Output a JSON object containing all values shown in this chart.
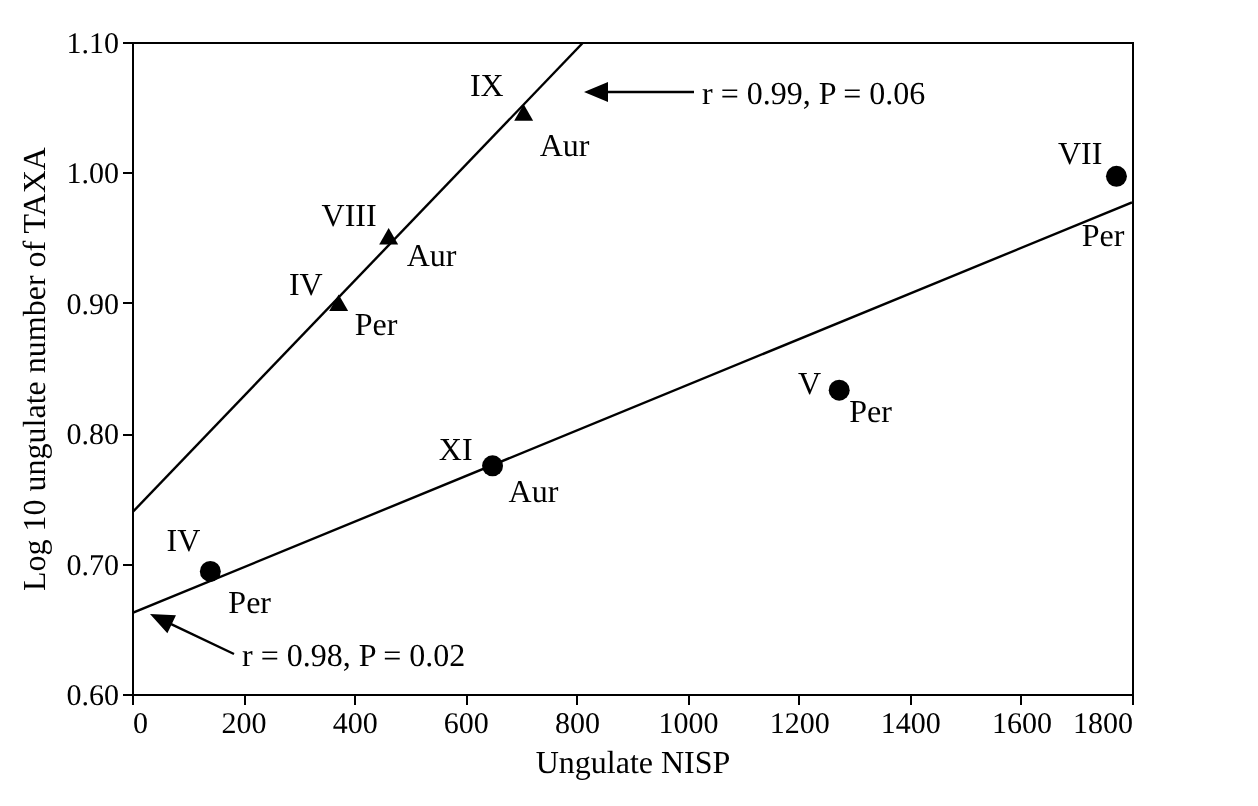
{
  "chart_data": {
    "type": "scatter",
    "xlabel": "Ungulate NISP",
    "ylabel": "Log 10 ungulate number of TAXA",
    "xlim": [
      0,
      1800
    ],
    "ylim": [
      0.6,
      1.1
    ],
    "xticks": [
      0,
      200,
      400,
      600,
      800,
      1000,
      1200,
      1400,
      1600,
      1800
    ],
    "yticks": [
      {
        "value": 0.6,
        "label": "0.60"
      },
      {
        "value": 0.7,
        "label": "0.70"
      },
      {
        "value": 0.8,
        "label": "0.80"
      },
      {
        "value": 0.9,
        "label": "0.90"
      },
      {
        "value": 1.0,
        "label": "1.00"
      },
      {
        "value": 1.1,
        "label": "1.10"
      }
    ],
    "grid": false,
    "series": [
      {
        "type": "scatter",
        "marker": "triangle",
        "color": "#000000",
        "x": [
          372,
          462,
          705
        ],
        "values": [
          0.9,
          0.951,
          1.046
        ]
      },
      {
        "type": "scatter",
        "marker": "circle",
        "color": "#000000",
        "x": [
          141,
          649,
          1273,
          1772
        ],
        "values": [
          0.694,
          0.775,
          0.833,
          0.997
        ]
      },
      {
        "type": "line",
        "marker": "none",
        "line_style": "solid",
        "color": "#000000",
        "x": [
          0,
          813
        ],
        "values": [
          0.739,
          1.1
        ]
      },
      {
        "type": "line",
        "marker": "none",
        "line_style": "solid",
        "color": "#000000",
        "x": [
          0,
          1800
        ],
        "values": [
          0.662,
          0.977
        ]
      }
    ],
    "annotations": [
      {
        "text": "IV",
        "x": 372,
        "y": 0.9
      },
      {
        "text": "Per",
        "x": 372,
        "y": 0.9
      },
      {
        "text": "VIII",
        "x": 462,
        "y": 0.951
      },
      {
        "text": "Aur",
        "x": 462,
        "y": 0.951
      },
      {
        "text": "IX",
        "x": 705,
        "y": 1.046
      },
      {
        "text": "Aur",
        "x": 705,
        "y": 1.046
      },
      {
        "text": "IV",
        "x": 141,
        "y": 0.694
      },
      {
        "text": "Per",
        "x": 141,
        "y": 0.694
      },
      {
        "text": "XI",
        "x": 649,
        "y": 0.775
      },
      {
        "text": "Aur",
        "x": 649,
        "y": 0.775
      },
      {
        "text": "V",
        "x": 1273,
        "y": 0.833
      },
      {
        "text": "Per",
        "x": 1273,
        "y": 0.833
      },
      {
        "text": "VII",
        "x": 1772,
        "y": 0.997
      },
      {
        "text": "Per",
        "x": 1772,
        "y": 0.997
      },
      "r = 0.99, P = 0.06",
      "r = 0.98, P = 0.02"
    ]
  }
}
